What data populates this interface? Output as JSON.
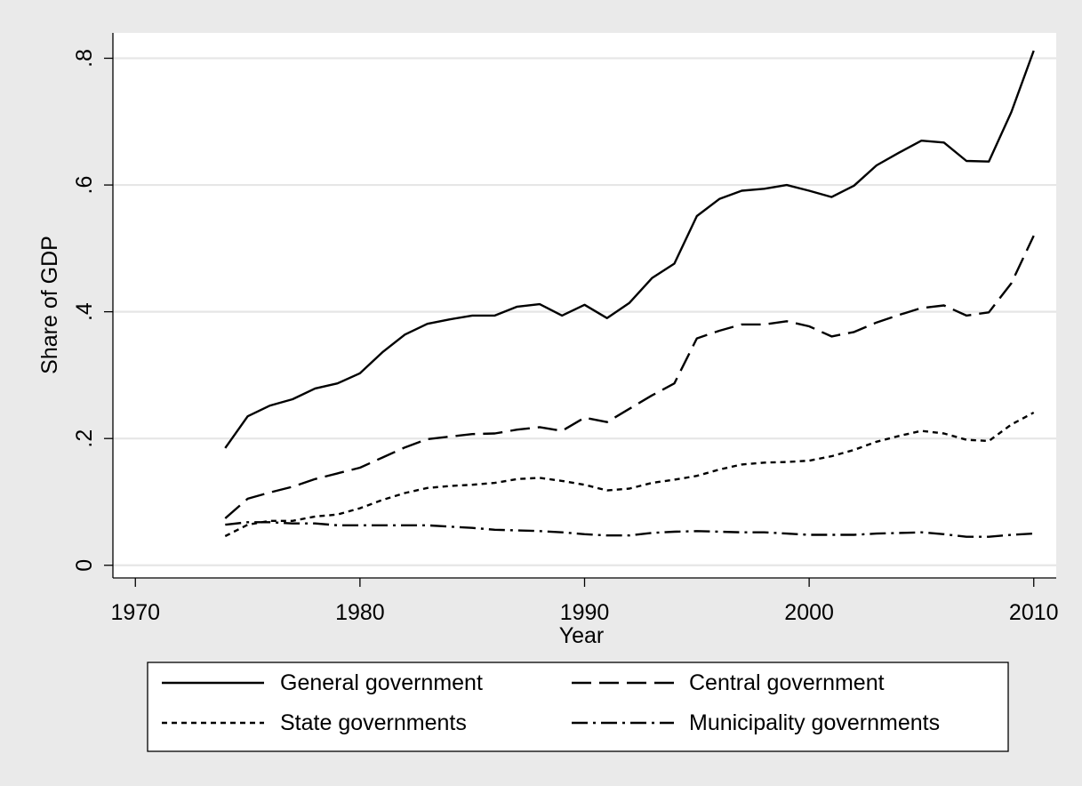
{
  "chart_data": {
    "type": "line",
    "title": "",
    "xlabel": "Year",
    "ylabel": "Share of GDP",
    "xlim": [
      1969,
      2011
    ],
    "ylim": [
      -0.02,
      0.84
    ],
    "x_ticks": [
      1970,
      1980,
      1990,
      2000,
      2010
    ],
    "x_tick_labels": [
      "1970",
      "1980",
      "1990",
      "2000",
      "2010"
    ],
    "y_ticks": [
      0,
      0.2,
      0.4,
      0.6,
      0.8
    ],
    "y_tick_labels": [
      "0",
      ".2",
      ".4",
      ".6",
      ".8"
    ],
    "grid": true,
    "legend_position": "bottom",
    "x": [
      1974,
      1975,
      1976,
      1977,
      1978,
      1979,
      1980,
      1981,
      1982,
      1983,
      1984,
      1985,
      1986,
      1987,
      1988,
      1989,
      1990,
      1991,
      1992,
      1993,
      1994,
      1995,
      1996,
      1997,
      1998,
      1999,
      2000,
      2001,
      2002,
      2003,
      2004,
      2005,
      2006,
      2007,
      2008,
      2009,
      2010
    ],
    "series": [
      {
        "name": "General government",
        "dash": "solid",
        "values": [
          0.185,
          0.235,
          0.252,
          0.262,
          0.279,
          0.287,
          0.303,
          0.336,
          0.364,
          0.381,
          0.388,
          0.394,
          0.394,
          0.408,
          0.412,
          0.394,
          0.411,
          0.39,
          0.414,
          0.453,
          0.476,
          0.551,
          0.578,
          0.591,
          0.594,
          0.6,
          0.591,
          0.581,
          0.599,
          0.631,
          0.651,
          0.67,
          0.667,
          0.638,
          0.637,
          0.715,
          0.812
        ]
      },
      {
        "name": "Central government",
        "dash": "longdash",
        "values": [
          0.074,
          0.105,
          0.115,
          0.124,
          0.136,
          0.145,
          0.154,
          0.17,
          0.186,
          0.199,
          0.203,
          0.207,
          0.208,
          0.214,
          0.218,
          0.212,
          0.233,
          0.226,
          0.247,
          0.268,
          0.287,
          0.358,
          0.37,
          0.38,
          0.38,
          0.385,
          0.377,
          0.361,
          0.368,
          0.383,
          0.395,
          0.406,
          0.41,
          0.394,
          0.399,
          0.445,
          0.52
        ]
      },
      {
        "name": "State governments",
        "dash": "shortdash",
        "values": [
          0.046,
          0.064,
          0.07,
          0.07,
          0.077,
          0.08,
          0.09,
          0.103,
          0.114,
          0.122,
          0.125,
          0.127,
          0.13,
          0.136,
          0.138,
          0.133,
          0.127,
          0.118,
          0.121,
          0.13,
          0.135,
          0.141,
          0.151,
          0.159,
          0.162,
          0.163,
          0.165,
          0.172,
          0.182,
          0.195,
          0.204,
          0.212,
          0.208,
          0.198,
          0.196,
          0.222,
          0.241
        ]
      },
      {
        "name": "Municipality governments",
        "dash": "dashdot",
        "values": [
          0.064,
          0.068,
          0.068,
          0.066,
          0.066,
          0.063,
          0.063,
          0.063,
          0.063,
          0.063,
          0.061,
          0.059,
          0.056,
          0.055,
          0.054,
          0.052,
          0.049,
          0.047,
          0.047,
          0.051,
          0.053,
          0.054,
          0.053,
          0.052,
          0.052,
          0.05,
          0.048,
          0.048,
          0.048,
          0.05,
          0.051,
          0.052,
          0.049,
          0.045,
          0.045,
          0.048,
          0.05
        ]
      }
    ]
  }
}
